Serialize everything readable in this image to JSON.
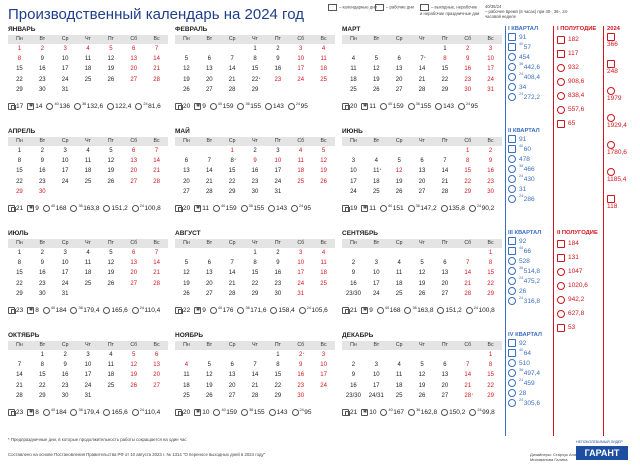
{
  "title": "Производственный календарь на 2024 год",
  "legend": {
    "cal_days": "– календарные дни",
    "work_days": "– рабочие дни",
    "holidays": "– выходные, нерабочие и нерабочие праздничные дни",
    "hours_label": "40/36/24",
    "hours_text": "– рабочее время (в часах) при 40-, 36-, 24- часовой неделе"
  },
  "weekdays": [
    "Пн",
    "Вт",
    "Ср",
    "Чт",
    "Пт",
    "Сб",
    "Вс"
  ],
  "months": [
    {
      "name": "ЯНВАРЬ",
      "weeks": [
        [
          "1",
          "2",
          "3",
          "4",
          "5",
          "6",
          "7"
        ],
        [
          "8",
          "9",
          "10",
          "11",
          "12",
          "13",
          "14"
        ],
        [
          "15",
          "16",
          "17",
          "18",
          "19",
          "20",
          "21"
        ],
        [
          "22",
          "23",
          "24",
          "25",
          "26",
          "27",
          "28"
        ],
        [
          "29",
          "30",
          "31",
          "",
          "",
          "",
          ""
        ]
      ],
      "red": [
        1,
        2,
        3,
        4,
        5,
        6,
        7,
        8,
        13,
        14,
        20,
        21,
        27,
        28
      ],
      "stars": [],
      "f": [
        "17",
        "14",
        "136",
        "132,6",
        "122,4",
        "81,6"
      ]
    },
    {
      "name": "ФЕВРАЛЬ",
      "weeks": [
        [
          "",
          "",
          "",
          "1",
          "2",
          "3",
          "4"
        ],
        [
          "5",
          "6",
          "7",
          "8",
          "9",
          "10",
          "11"
        ],
        [
          "12",
          "13",
          "14",
          "15",
          "16",
          "17",
          "18"
        ],
        [
          "19",
          "20",
          "21",
          "22",
          "23",
          "24",
          "25"
        ],
        [
          "26",
          "27",
          "28",
          "29",
          "",
          "",
          ""
        ]
      ],
      "red": [
        3,
        4,
        10,
        11,
        17,
        18,
        23,
        24,
        25
      ],
      "stars": [
        22
      ],
      "f": [
        "20",
        "9",
        "159",
        "155",
        "143",
        "95"
      ]
    },
    {
      "name": "МАРТ",
      "weeks": [
        [
          "",
          "",
          "",
          "",
          "1",
          "2",
          "3"
        ],
        [
          "4",
          "5",
          "6",
          "7",
          "8",
          "9",
          "10"
        ],
        [
          "11",
          "12",
          "13",
          "14",
          "15",
          "16",
          "17"
        ],
        [
          "18",
          "19",
          "20",
          "21",
          "22",
          "23",
          "24"
        ],
        [
          "25",
          "26",
          "27",
          "28",
          "29",
          "30",
          "31"
        ]
      ],
      "red": [
        2,
        3,
        8,
        9,
        10,
        16,
        17,
        23,
        24,
        30,
        31
      ],
      "stars": [
        7
      ],
      "f": [
        "20",
        "11",
        "159",
        "155",
        "143",
        "95"
      ]
    },
    {
      "name": "АПРЕЛЬ",
      "weeks": [
        [
          "1",
          "2",
          "3",
          "4",
          "5",
          "6",
          "7"
        ],
        [
          "8",
          "9",
          "10",
          "11",
          "12",
          "13",
          "14"
        ],
        [
          "15",
          "16",
          "17",
          "18",
          "19",
          "20",
          "21"
        ],
        [
          "22",
          "23",
          "24",
          "25",
          "26",
          "27",
          "28"
        ],
        [
          "29",
          "30",
          "",
          "",
          "",
          "",
          ""
        ]
      ],
      "red": [
        6,
        7,
        13,
        14,
        20,
        21,
        28,
        29,
        30
      ],
      "stars": [],
      "f": [
        "21",
        "9",
        "168",
        "163,8",
        "151,2",
        "100,8"
      ]
    },
    {
      "name": "МАЙ",
      "weeks": [
        [
          "",
          "",
          "1",
          "2",
          "3",
          "4",
          "5"
        ],
        [
          "6",
          "7",
          "8",
          "9",
          "10",
          "11",
          "12"
        ],
        [
          "13",
          "14",
          "15",
          "16",
          "17",
          "18",
          "19"
        ],
        [
          "20",
          "21",
          "22",
          "23",
          "24",
          "25",
          "26"
        ],
        [
          "27",
          "28",
          "29",
          "30",
          "31",
          "",
          ""
        ]
      ],
      "red": [
        1,
        4,
        5,
        9,
        10,
        11,
        12,
        18,
        19,
        25,
        26
      ],
      "stars": [
        8
      ],
      "f": [
        "20",
        "11",
        "159",
        "155",
        "143",
        "95"
      ]
    },
    {
      "name": "ИЮНЬ",
      "weeks": [
        [
          "",
          "",
          "",
          "",
          "",
          "1",
          "2"
        ],
        [
          "3",
          "4",
          "5",
          "6",
          "7",
          "8",
          "9"
        ],
        [
          "10",
          "11",
          "12",
          "13",
          "14",
          "15",
          "16"
        ],
        [
          "17",
          "18",
          "19",
          "20",
          "21",
          "22",
          "23"
        ],
        [
          "24",
          "25",
          "26",
          "27",
          "28",
          "29",
          "30"
        ]
      ],
      "red": [
        1,
        2,
        8,
        9,
        12,
        15,
        16,
        22,
        23,
        29,
        30
      ],
      "stars": [
        11
      ],
      "f": [
        "19",
        "11",
        "151",
        "147,2",
        "135,8",
        "90,2"
      ]
    },
    {
      "name": "ИЮЛЬ",
      "weeks": [
        [
          "1",
          "2",
          "3",
          "4",
          "5",
          "6",
          "7"
        ],
        [
          "8",
          "9",
          "10",
          "11",
          "12",
          "13",
          "14"
        ],
        [
          "15",
          "16",
          "17",
          "18",
          "19",
          "20",
          "21"
        ],
        [
          "22",
          "23",
          "24",
          "25",
          "26",
          "27",
          "28"
        ],
        [
          "29",
          "30",
          "31",
          "",
          "",
          "",
          ""
        ]
      ],
      "red": [
        6,
        7,
        13,
        14,
        20,
        21,
        27,
        28
      ],
      "stars": [],
      "f": [
        "23",
        "8",
        "184",
        "179,4",
        "165,6",
        "110,4"
      ]
    },
    {
      "name": "АВГУСТ",
      "weeks": [
        [
          "",
          "",
          "",
          "1",
          "2",
          "3",
          "4"
        ],
        [
          "5",
          "6",
          "7",
          "8",
          "9",
          "10",
          "11"
        ],
        [
          "12",
          "13",
          "14",
          "15",
          "16",
          "17",
          "18"
        ],
        [
          "19",
          "20",
          "21",
          "22",
          "23",
          "24",
          "25"
        ],
        [
          "26",
          "27",
          "28",
          "29",
          "30",
          "31",
          ""
        ]
      ],
      "red": [
        3,
        4,
        10,
        11,
        17,
        18,
        24,
        25,
        31
      ],
      "stars": [],
      "f": [
        "22",
        "9",
        "176",
        "171,6",
        "158,4",
        "105,6"
      ]
    },
    {
      "name": "СЕНТЯБРЬ",
      "weeks": [
        [
          "",
          "",
          "",
          "",
          "",
          "",
          "1"
        ],
        [
          "2",
          "3",
          "4",
          "5",
          "6",
          "7",
          "8"
        ],
        [
          "9",
          "10",
          "11",
          "12",
          "13",
          "14",
          "15"
        ],
        [
          "16",
          "17",
          "18",
          "19",
          "20",
          "21",
          "22"
        ],
        [
          "23/30",
          "24",
          "25",
          "26",
          "27",
          "28",
          "29"
        ]
      ],
      "red": [
        1,
        7,
        8,
        14,
        15,
        21,
        22,
        28,
        29
      ],
      "stars": [],
      "f": [
        "21",
        "9",
        "168",
        "163,8",
        "151,2",
        "100,8"
      ]
    },
    {
      "name": "ОКТЯБРЬ",
      "weeks": [
        [
          "",
          "1",
          "2",
          "3",
          "4",
          "5",
          "6"
        ],
        [
          "7",
          "8",
          "9",
          "10",
          "11",
          "12",
          "13"
        ],
        [
          "14",
          "15",
          "16",
          "17",
          "18",
          "19",
          "20"
        ],
        [
          "21",
          "22",
          "23",
          "24",
          "25",
          "26",
          "27"
        ],
        [
          "28",
          "29",
          "30",
          "31",
          "",
          "",
          ""
        ]
      ],
      "red": [
        5,
        6,
        12,
        13,
        19,
        20,
        26,
        27
      ],
      "stars": [],
      "f": [
        "23",
        "8",
        "184",
        "179,4",
        "165,6",
        "110,4"
      ]
    },
    {
      "name": "НОЯБРЬ",
      "weeks": [
        [
          "",
          "",
          "",
          "",
          "1",
          "2",
          "3"
        ],
        [
          "4",
          "5",
          "6",
          "7",
          "8",
          "9",
          "10"
        ],
        [
          "11",
          "12",
          "13",
          "14",
          "15",
          "16",
          "17"
        ],
        [
          "18",
          "19",
          "20",
          "21",
          "22",
          "23",
          "24"
        ],
        [
          "25",
          "26",
          "27",
          "28",
          "29",
          "30",
          ""
        ]
      ],
      "red": [
        3,
        4,
        9,
        10,
        16,
        17,
        23,
        24,
        30
      ],
      "stars": [
        2
      ],
      "f": [
        "20",
        "10",
        "159",
        "155",
        "143",
        "95"
      ]
    },
    {
      "name": "ДЕКАБРЬ",
      "weeks": [
        [
          "",
          "",
          "",
          "",
          "",
          "",
          "1"
        ],
        [
          "2",
          "3",
          "4",
          "5",
          "6",
          "7",
          "8"
        ],
        [
          "9",
          "10",
          "11",
          "12",
          "13",
          "14",
          "15"
        ],
        [
          "16",
          "17",
          "18",
          "19",
          "20",
          "21",
          "22"
        ],
        [
          "23/30",
          "24/31",
          "25",
          "26",
          "27",
          "28",
          "29"
        ]
      ],
      "red": [
        1,
        7,
        8,
        14,
        15,
        21,
        22,
        28,
        29,
        30,
        31
      ],
      "stars": [
        28
      ],
      "f": [
        "21",
        "10",
        "167",
        "162,8",
        "150,2",
        "99,8"
      ]
    }
  ],
  "quarters": [
    {
      "label": "I КВАРТАЛ",
      "items": [
        [
          "91",
          ""
        ],
        [
          "57",
          "40"
        ],
        [
          "454",
          ""
        ],
        [
          "442,6",
          "36"
        ],
        [
          "408,4",
          "24"
        ],
        [
          "34",
          ""
        ],
        [
          "272,2",
          "24"
        ]
      ]
    },
    {
      "label": "II КВАРТАЛ",
      "items": [
        [
          "91",
          ""
        ],
        [
          "60",
          "40"
        ],
        [
          "478",
          ""
        ],
        [
          "466",
          "36"
        ],
        [
          "430",
          "24"
        ],
        [
          "31",
          ""
        ],
        [
          "286",
          "24"
        ]
      ]
    },
    {
      "label": "III КВАРТАЛ",
      "items": [
        [
          "92",
          ""
        ],
        [
          "66",
          "40"
        ],
        [
          "528",
          ""
        ],
        [
          "514,8",
          "36"
        ],
        [
          "475,2",
          "24"
        ],
        [
          "26",
          ""
        ],
        [
          "316,8",
          "24"
        ]
      ]
    },
    {
      "label": "IV КВАРТАЛ",
      "items": [
        [
          "92",
          ""
        ],
        [
          "64",
          "40"
        ],
        [
          "510",
          ""
        ],
        [
          "497,4",
          "36"
        ],
        [
          "459",
          "24"
        ],
        [
          "28",
          ""
        ],
        [
          "305,6",
          "24"
        ]
      ]
    }
  ],
  "halves": [
    {
      "label": "I ПОЛУГОДИЕ",
      "items": [
        "182",
        "117",
        "932",
        "908,6",
        "838,4",
        "557,6",
        "65"
      ]
    },
    {
      "label": "II ПОЛУГОДИЕ",
      "items": [
        "184",
        "131",
        "1047",
        "1020,6",
        "942,2",
        "627,8",
        "53"
      ]
    }
  ],
  "year": {
    "label": "2024",
    "items": [
      "366",
      "248",
      "1979",
      "1929,4",
      "1780,6",
      "1185,4",
      "118"
    ]
  },
  "footnotes": {
    "star": "* Предпраздничные дни, в которые продолжительность работы сокращается на один час",
    "basis": "Составлено на основе Постановления Правительства РФ от 10 августа 2023 г. № 1314 \"О переносе выходных дней в 2024 году\""
  },
  "authors": {
    "line1": "Дизайнеры: Старчук Анастасия",
    "line2": "Милованова Галина"
  },
  "logo": {
    "top": "НЕПОКОЛЕБИМЫЙ ЛИДЕР",
    "text": "ГАРАНТ"
  }
}
